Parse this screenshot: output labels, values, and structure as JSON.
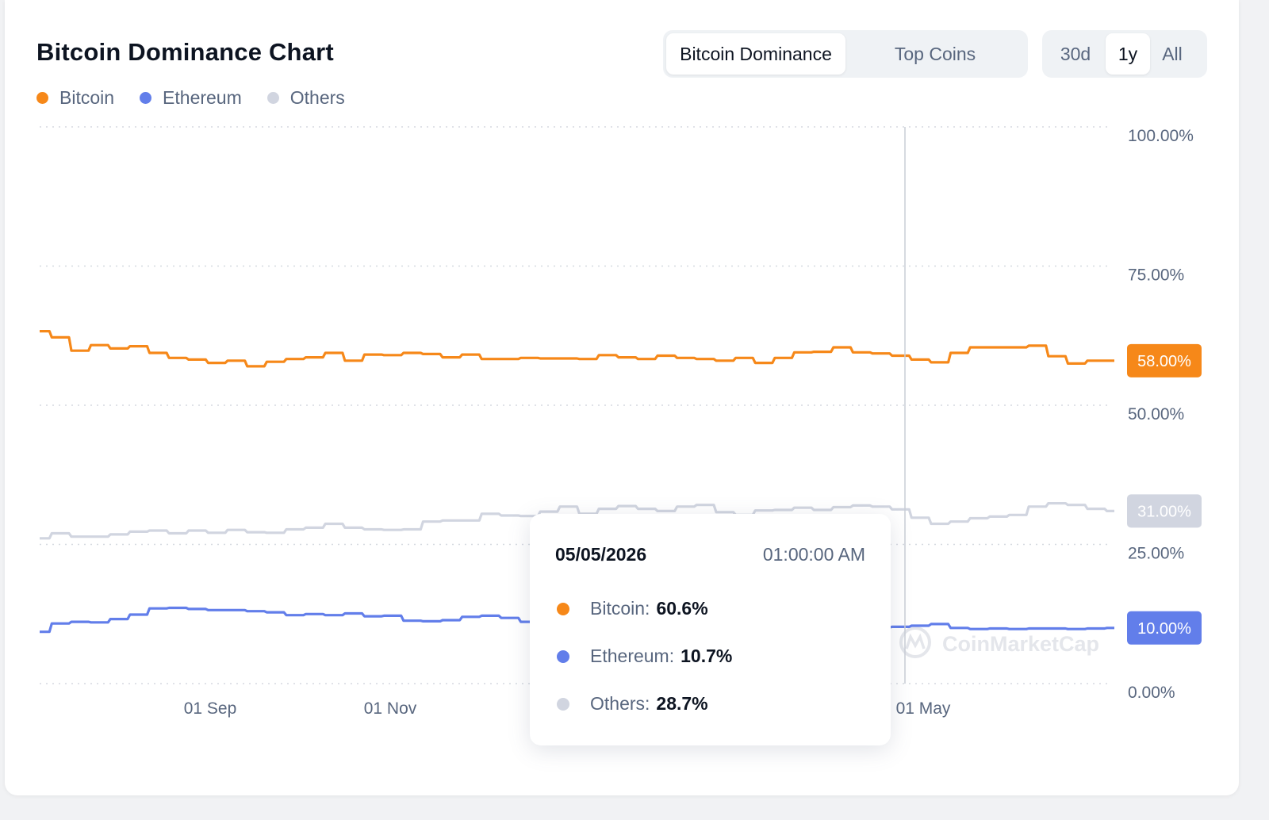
{
  "title": "Bitcoin Dominance Chart",
  "legend": [
    {
      "label": "Bitcoin",
      "color": "#f68819"
    },
    {
      "label": "Ethereum",
      "color": "#627eea"
    },
    {
      "label": "Others",
      "color": "#d1d5e0"
    }
  ],
  "view_tabs": [
    {
      "label": "Bitcoin Dominance",
      "active": true
    },
    {
      "label": "Top Coins",
      "active": false
    }
  ],
  "range_tabs": [
    {
      "label": "30d",
      "active": false
    },
    {
      "label": "1y",
      "active": true
    },
    {
      "label": "All",
      "active": false
    }
  ],
  "watermark": "CoinMarketCap",
  "tooltip": {
    "date": "05/05/2026",
    "time": "01:00:00 AM",
    "rows": [
      {
        "label": "Bitcoin:",
        "value": "60.6%",
        "color": "#f68819"
      },
      {
        "label": "Ethereum:",
        "value": "10.7%",
        "color": "#627eea"
      },
      {
        "label": "Others:",
        "value": "28.7%",
        "color": "#d1d5e0"
      }
    ]
  },
  "chart_data": {
    "type": "line",
    "y_ticks": [
      "100.00%",
      "75.00%",
      "50.00%",
      "25.00%",
      "0.00%"
    ],
    "ylim": [
      0,
      100
    ],
    "x_ticks": [
      "01 Sep",
      "01 Nov",
      "01 May"
    ],
    "grid": true,
    "current_labels": [
      {
        "series": "Bitcoin",
        "label": "58.00%",
        "value": 58.0,
        "color": "#f68819"
      },
      {
        "series": "Others",
        "label": "31.00%",
        "value": 31.0,
        "color": "#d1d5e0"
      },
      {
        "series": "Ethereum",
        "label": "10.00%",
        "value": 10.0,
        "color": "#627eea"
      }
    ],
    "series": [
      {
        "name": "Bitcoin",
        "color": "#f68819",
        "values": [
          63.3,
          62.2,
          59.8,
          60.8,
          60.2,
          60.6,
          59.4,
          58.5,
          58.2,
          57.6,
          58.0,
          57.0,
          57.8,
          58.3,
          58.6,
          59.4,
          58.0,
          59.1,
          59.0,
          59.4,
          59.2,
          58.6,
          59.1,
          58.3,
          58.3,
          58.5,
          58.4,
          58.4,
          58.3,
          59.0,
          58.6,
          58.3,
          58.9,
          58.5,
          58.3,
          58.0,
          58.5,
          57.6,
          58.5,
          59.5,
          59.6,
          60.4,
          59.5,
          59.3,
          58.9,
          58.2,
          57.7,
          59.4,
          60.4,
          60.4,
          60.4,
          60.7,
          58.8,
          57.5,
          58.0,
          58.0
        ]
      },
      {
        "name": "Others",
        "color": "#d1d5e0",
        "values": [
          26.1,
          27.0,
          26.4,
          26.4,
          26.8,
          27.3,
          27.5,
          27.0,
          27.5,
          27.1,
          27.6,
          27.2,
          27.1,
          27.7,
          28.0,
          28.7,
          28.0,
          27.7,
          27.6,
          27.7,
          29.1,
          29.3,
          29.3,
          30.5,
          30.2,
          30.1,
          30.9,
          31.8,
          30.5,
          31.4,
          31.9,
          31.4,
          31.0,
          31.8,
          32.1,
          30.8,
          30.3,
          31.1,
          31.2,
          31.6,
          31.2,
          31.7,
          32.0,
          31.8,
          31.3,
          29.8,
          28.7,
          29.1,
          29.7,
          30.0,
          30.3,
          31.8,
          32.4,
          32.1,
          31.4,
          31.0
        ]
      },
      {
        "name": "Ethereum",
        "color": "#627eea",
        "values": [
          9.3,
          10.8,
          11.1,
          11.0,
          11.6,
          12.4,
          13.5,
          13.6,
          13.4,
          13.2,
          13.2,
          13.0,
          12.8,
          12.3,
          12.5,
          12.3,
          12.6,
          12.1,
          12.2,
          11.3,
          11.2,
          11.4,
          12.0,
          12.2,
          11.8,
          11.1,
          10.9,
          10.7,
          10.5,
          10.6,
          10.8,
          10.6,
          10.5,
          10.7,
          10.5,
          10.6,
          10.6,
          10.4,
          10.5,
          10.3,
          10.7,
          10.5,
          10.3,
          10.1,
          10.2,
          10.4,
          10.7,
          10.0,
          9.8,
          9.9,
          9.8,
          9.9,
          9.9,
          9.8,
          9.9,
          10.0
        ]
      }
    ]
  }
}
